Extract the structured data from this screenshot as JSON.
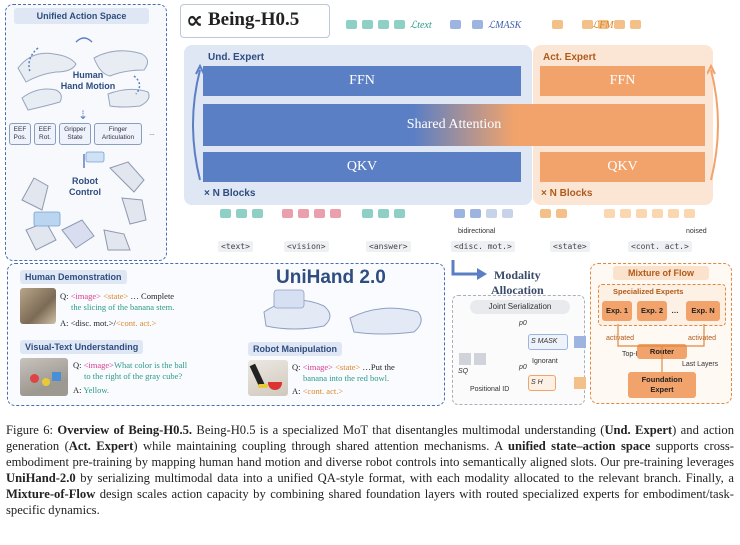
{
  "unified_action_space": {
    "title": "Unified Action Space",
    "human_motion": "Human\nHand Motion",
    "slots": [
      "EEF\nPos.",
      "EEF\nRot.",
      "Gripper\nState",
      "Finger\nArticulation",
      "..."
    ],
    "robot_control": "Robot\nControl"
  },
  "header": {
    "logo": "∝",
    "title": "Being-H0.5"
  },
  "architecture": {
    "und_expert": "Und. Expert",
    "act_expert": "Act. Expert",
    "ffn": "FFN",
    "shared_attention": "Shared Attention",
    "qkv": "QKV",
    "blocks": "× N Blocks",
    "loss_text": "ℒtext",
    "loss_mask": "ℒMASK",
    "loss_fm": "ℒFM",
    "bidirectional": "bidirectional",
    "noised": "noised",
    "token_groups": [
      "<text>",
      "<vision>",
      "<answer>",
      "<disc. mot.>",
      "<state>",
      "<cont. act.>"
    ],
    "colors": {
      "und": "#5b7fc4",
      "act": "#f1a36b",
      "text_tok": "#8fd0c6",
      "vision_tok": "#e9a0ac",
      "state_tok": "#f4c08a",
      "mask_tok": "#9db3e0"
    }
  },
  "unihand": {
    "title": "UniHand 2.0",
    "human_demo": {
      "title": "Human Demonstration",
      "q_prefix": "Q: ",
      "q_image": "<image>",
      "q_state": "<state>",
      "q_text": " … Complete",
      "q_text2": "the slicing of the banana stem.",
      "a_prefix": "A: ",
      "a_disc": "<disc. mot.>",
      "a_sep": "/",
      "a_cont": "<cont. act.>"
    },
    "visual_text": {
      "title": "Visual-Text Understanding",
      "q_prefix": "Q: ",
      "q_image": "<image>",
      "q_text": "What color is the ball",
      "q_text2": "to the right of the gray cube?",
      "a_prefix": "A: ",
      "a_text": "Yellow."
    },
    "robot_manip": {
      "title": "Robot Manipulation",
      "q_prefix": "Q: ",
      "q_image": "<image>",
      "q_state": "<state>",
      "q_text": " …Put the",
      "q_text2": "banana into the red bowl.",
      "a_prefix": "A: ",
      "a_cont": "<cont. act.>"
    }
  },
  "modality": {
    "title": "Modality\nAllocation",
    "joint_serialization": "Joint Serialization",
    "p0": "p0",
    "sq": "SQ",
    "mask_label": "S MASK",
    "ignorant": "Ignorant",
    "sh_label": "S H",
    "positional_id": "Positional ID"
  },
  "mixture_of_flow": {
    "title": "Mixture of Flow",
    "specialized": "Specialized Experts",
    "experts": [
      "Exp. 1",
      "Exp. 2",
      "…",
      "Exp. N"
    ],
    "activated": "activated",
    "router": "Router",
    "topk": "Top-K",
    "last_layers": "Last Layers",
    "foundation": "Foundation\nExpert"
  },
  "caption": {
    "fig": "Figure 6:",
    "bold_title": "Overview of Being-H0.5.",
    "t1": " Being-H0.5 is a specialized MoT that disentangles multimodal understanding (",
    "b1": "Und. Expert",
    "t2": ") and action generation (",
    "b2": "Act. Expert",
    "t3": ") while maintaining coupling through shared attention mechanisms. A ",
    "b3": "unified state–action space",
    "t4": " supports cross-embodiment pre-training by mapping human hand motion and diverse robot controls into semantically aligned slots. Our pre-training leverages ",
    "b4": "UniHand-2.0",
    "t5": " by serializing multimodal data into a unified QA-style format, with each modality allocated to the relevant branch. Finally, a ",
    "b5": "Mixture-of-Flow",
    "t6": " design scales action capacity by combining shared foundation layers with routed specialized experts for embodiment/task-specific dynamics."
  }
}
